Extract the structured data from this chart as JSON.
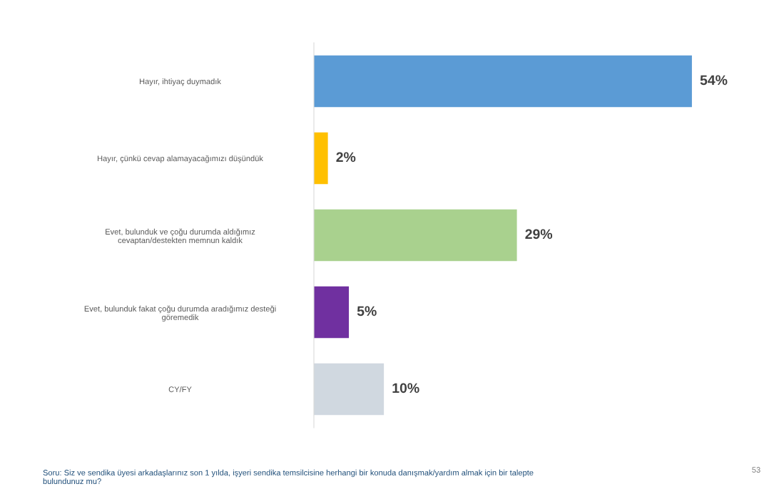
{
  "chart_data": {
    "type": "bar",
    "orientation": "horizontal",
    "categories": [
      "Hayır, ihtiyaç duymadık",
      "Hayır, çünkü cevap alamayacağımızı düşündük",
      "Evet, bulunduk ve çoğu durumda aldığımız\ncevaptan/destekten memnun kaldık",
      "Evet, bulunduk fakat çoğu durumda aradığımız desteği\ngöremedik",
      "CY/FY"
    ],
    "values": [
      54,
      2,
      29,
      5,
      10
    ],
    "colors": [
      "#5b9bd5",
      "#ffc000",
      "#a9d18e",
      "#7030a0",
      "#d0d8e0"
    ],
    "value_labels": [
      "54%",
      "2%",
      "29%",
      "5%",
      "10%"
    ],
    "annotations": [
      "Soru: Siz ve sendika üyesi arkadaşlarınız son 1 yılda, işyeri sendika temsilcisine herhangi bir konuda danışmak/yardım almak için bir talepte\nbulundunuz mu?",
      "53"
    ],
    "grid": false,
    "legend": false
  }
}
